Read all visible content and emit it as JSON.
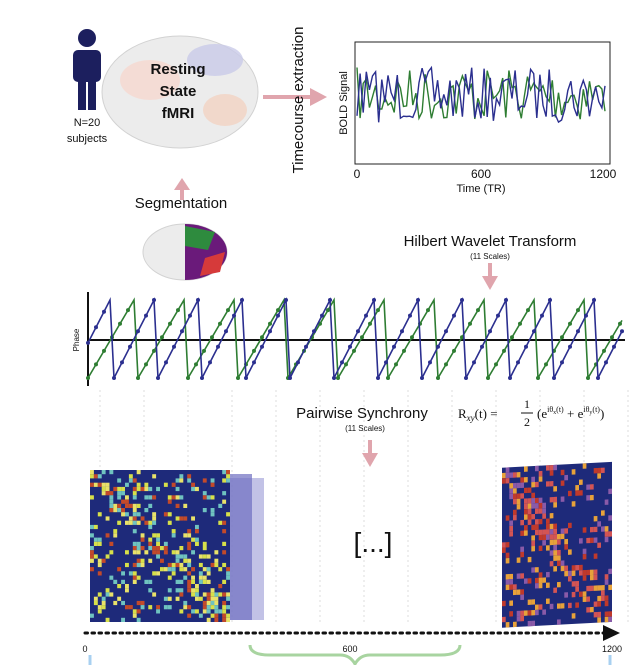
{
  "subject": {
    "count": "N=20",
    "label": "subjects"
  },
  "brain_label": [
    "Resting",
    "State",
    "fMRI"
  ],
  "timecourse": {
    "title": "Timecourse extraction",
    "y_label": "BOLD Signal",
    "x_label": "Time (TR)",
    "x_ticks": [
      "0",
      "600",
      "1200"
    ]
  },
  "segmentation": "Segmentation",
  "hilbert": {
    "title": "Hilbert Wavelet Transform",
    "note": "(11 Scales)"
  },
  "phase_label": "Phase",
  "synchrony": {
    "title": "Pairwise Synchrony",
    "note": "(11 Scales)"
  },
  "formula": {
    "lhs": "R",
    "lhs_sub": "xy",
    "lhs_arg": "(t) =",
    "num": "1",
    "den": "2",
    "open": "(e",
    "sup1": "iθ",
    "sub1": "x",
    "arg1": "(t)",
    "plus": " + e",
    "sup2": "iθ",
    "sub2": "y",
    "arg2": "(t)",
    "close": ")"
  },
  "ellipsis": "[...]",
  "timeline_ticks": [
    "0",
    "600",
    "1200"
  ]
}
